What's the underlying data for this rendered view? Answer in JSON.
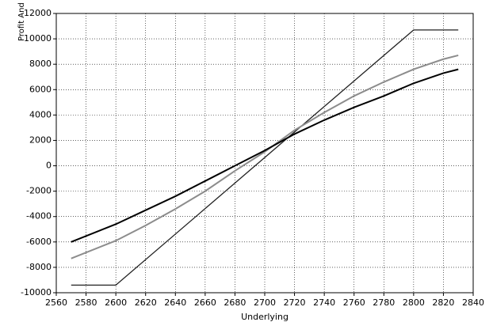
{
  "chart_data": {
    "type": "line",
    "x_label": "Underlying",
    "y_label": "Profit And Loss",
    "xlim": [
      2560,
      2840
    ],
    "xticks": [
      2560,
      2580,
      2600,
      2620,
      2640,
      2660,
      2680,
      2700,
      2720,
      2740,
      2760,
      2780,
      2800,
      2820,
      2840
    ],
    "ylim": [
      -10000,
      12000
    ],
    "yticks": [
      -10000,
      -8000,
      -6000,
      -4000,
      -2000,
      0,
      2000,
      4000,
      6000,
      8000,
      10000,
      12000
    ],
    "grid": true,
    "series": [
      {
        "color": "#222222",
        "width": 1.3,
        "x": [
          2570,
          2600,
          2800,
          2830
        ],
        "values": [
          -9400,
          -9400,
          10700,
          10700
        ]
      },
      {
        "color": "#8c8c8c",
        "width": 2,
        "x": [
          2570,
          2600,
          2620,
          2640,
          2660,
          2680,
          2700,
          2720,
          2740,
          2760,
          2780,
          2800,
          2820,
          2830
        ],
        "values": [
          -7300,
          -5900,
          -4700,
          -3400,
          -2000,
          -400,
          1100,
          2800,
          4200,
          5500,
          6600,
          7600,
          8400,
          8700
        ]
      },
      {
        "color": "#000000",
        "width": 2,
        "x": [
          2570,
          2600,
          2620,
          2640,
          2660,
          2680,
          2700,
          2720,
          2740,
          2760,
          2780,
          2800,
          2820,
          2830
        ],
        "values": [
          -6000,
          -4600,
          -3500,
          -2400,
          -1200,
          0,
          1200,
          2500,
          3600,
          4600,
          5500,
          6500,
          7300,
          7600
        ]
      }
    ]
  }
}
